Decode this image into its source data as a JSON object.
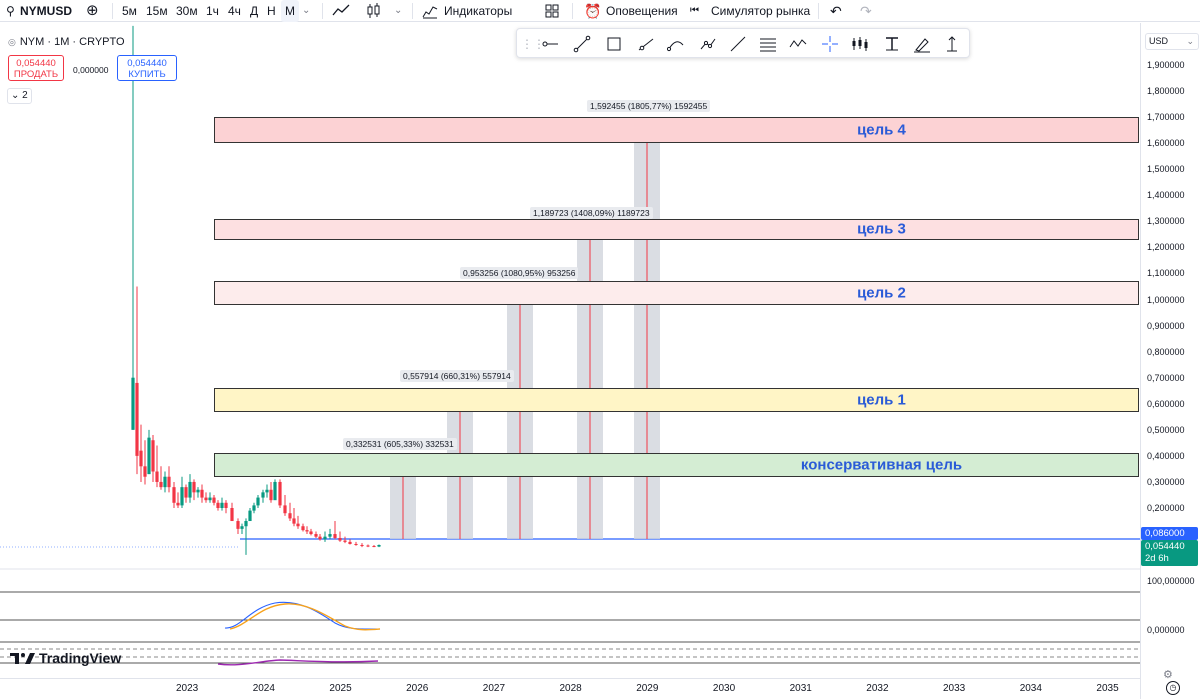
{
  "toolbar": {
    "symbol": "NYMUSD",
    "timeframes": [
      "5м",
      "15м",
      "30м",
      "1ч",
      "4ч",
      "Д",
      "Н",
      "М"
    ],
    "selected_timeframe": "М",
    "indicators_label": "Индикаторы",
    "alerts_label": "Оповещения",
    "simulator_label": "Симулятор рынка"
  },
  "legend": {
    "title": "NYM · 1M · CRYPTO",
    "sell_price": "0,054440",
    "sell_label": "ПРОДАТЬ",
    "spread": "0,000000",
    "buy_price": "0,054440",
    "buy_label": "КУПИТЬ",
    "collapse_count": "2"
  },
  "currency": "USD",
  "price_axis": [
    "1,900000",
    "1,800000",
    "1,700000",
    "1,600000",
    "1,500000",
    "1,400000",
    "1,300000",
    "1,200000",
    "1,100000",
    "1,000000",
    "0,900000",
    "0,800000",
    "0,700000",
    "0,600000",
    "0,500000",
    "0,400000",
    "0,300000",
    "0,200000"
  ],
  "price_tags": {
    "level": "0,086000",
    "last": "0,054440",
    "countdown": "2d 6h"
  },
  "indicator_axis": {
    "top": "100,000000",
    "bottom": "0,000000"
  },
  "x_axis": [
    "2023",
    "2024",
    "2025",
    "2026",
    "2027",
    "2028",
    "2029",
    "2030",
    "2031",
    "2032",
    "2033",
    "2034",
    "2035"
  ],
  "targets": [
    {
      "label": "цель 4",
      "top": 1.7,
      "bottom": 1.6,
      "color": "#fcd2d4"
    },
    {
      "label": "цель 3",
      "top": 1.31,
      "bottom": 1.23,
      "color": "#fde0e1"
    },
    {
      "label": "цель 2",
      "top": 1.07,
      "bottom": 0.98,
      "color": "#fdecec"
    },
    {
      "label": "цель 1",
      "top": 0.66,
      "bottom": 0.57,
      "color": "#fff5c6"
    },
    {
      "label": "консервативная цель",
      "top": 0.41,
      "bottom": 0.32,
      "color": "#d4edd3"
    }
  ],
  "projections": [
    {
      "label": "0,332531 (605,33%) 332531",
      "value": 0.385
    },
    {
      "label": "0,557914 (660,31%) 557914",
      "value": 0.645
    },
    {
      "label": "0,953256 (1080,95%) 953256",
      "value": 1.04
    },
    {
      "label": "1,189723 (1408,09%) 1189723",
      "value": 1.27
    },
    {
      "label": "1,592455 (1805,77%) 1592455",
      "value": 1.68
    }
  ],
  "branding": "TradingView"
}
